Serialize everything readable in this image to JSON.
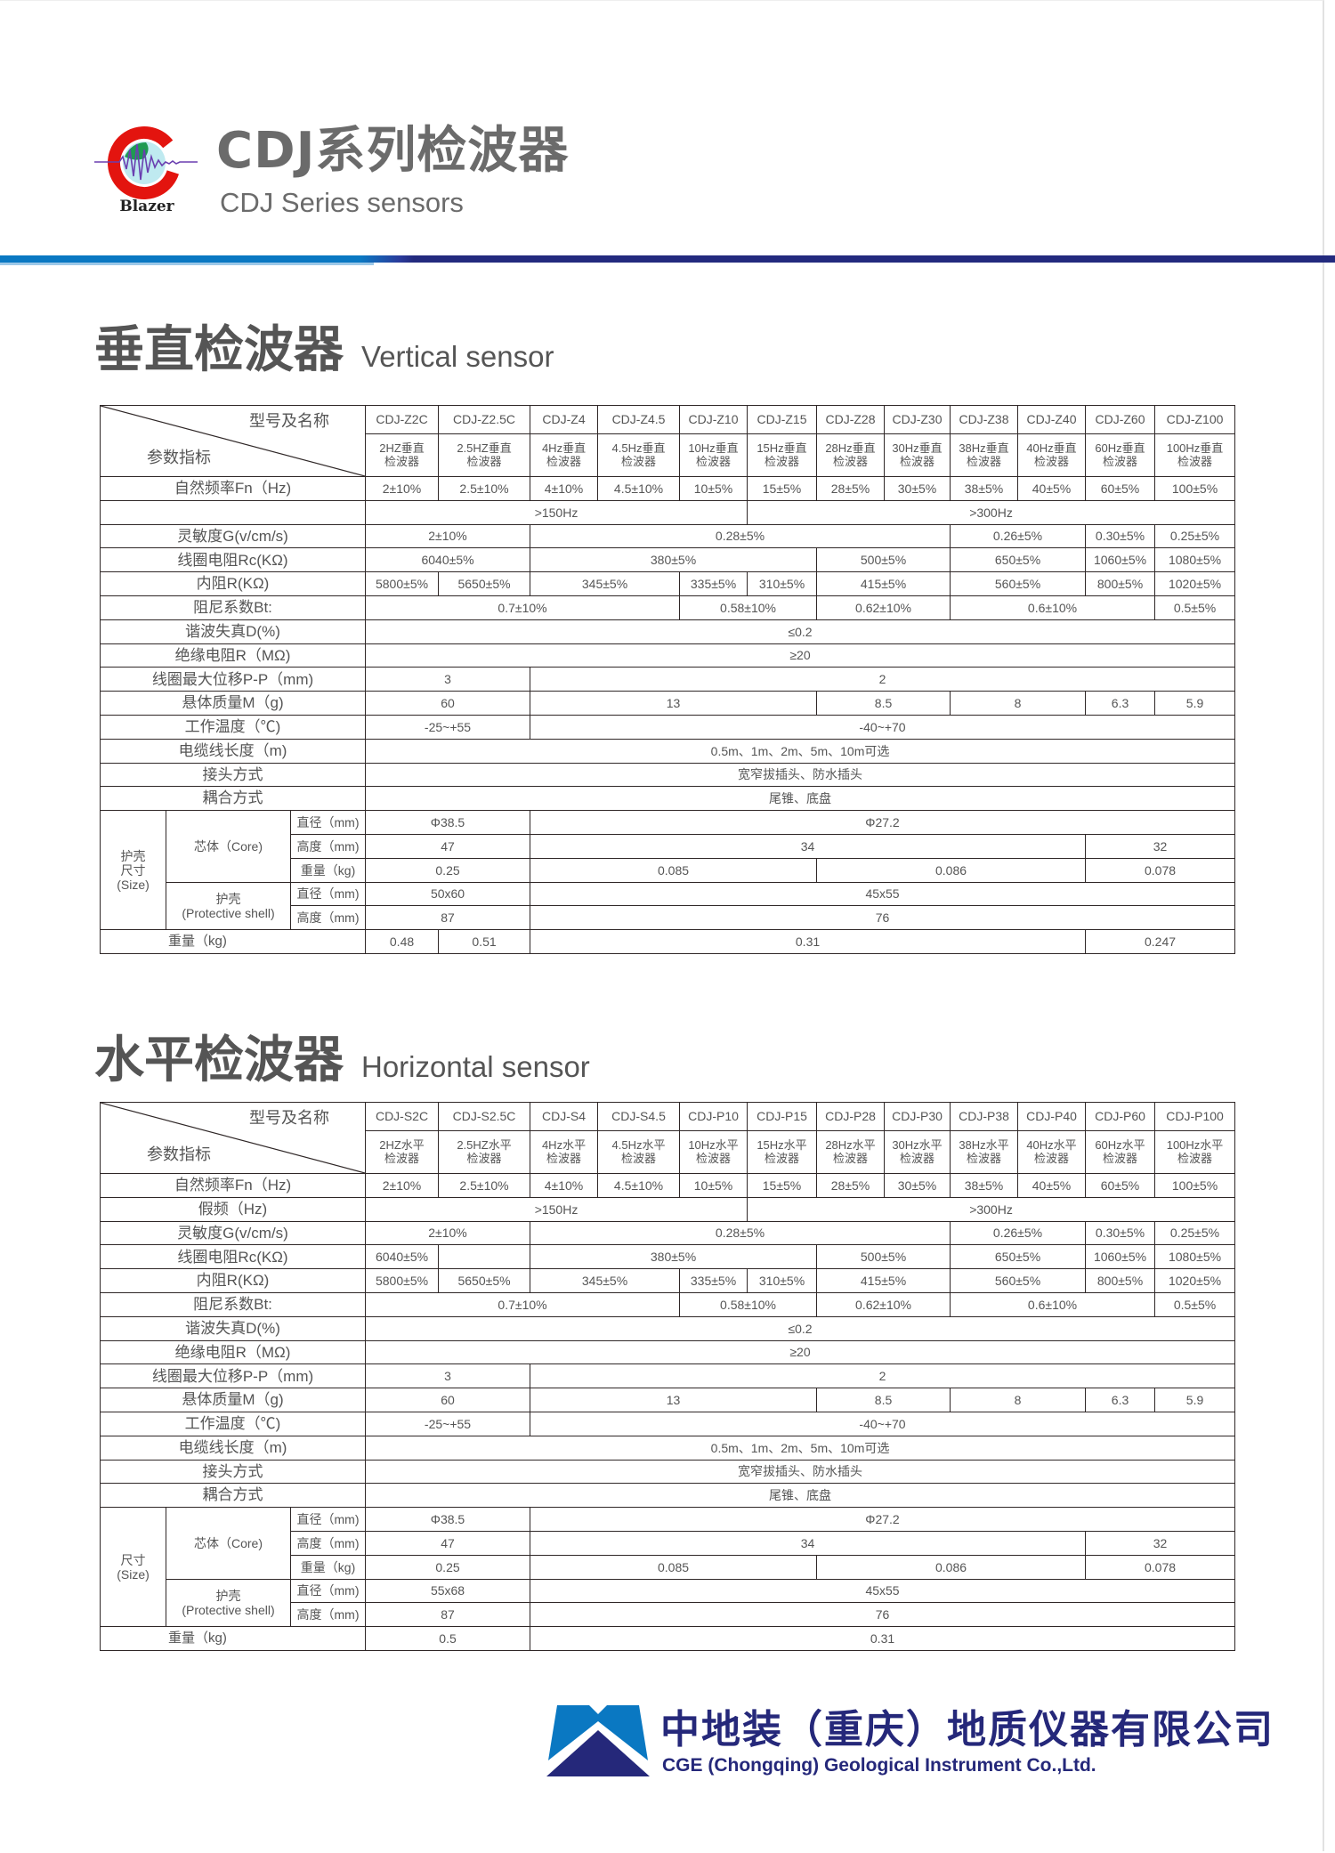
{
  "header": {
    "logo_text": "Blazer",
    "title_cn": "CDJ系列检波器",
    "title_en": "CDJ Series sensors",
    "colors": {
      "band_blue": "#0a78c2",
      "band_navy": "#232a7e",
      "logo_red": "#e3140f"
    }
  },
  "vertical": {
    "title_cn": "垂直检波器",
    "title_en": "Vertical sensor",
    "corner_top": "型号及名称",
    "corner_bottom": "参数指标",
    "models": [
      "CDJ-Z2C",
      "CDJ-Z2.5C",
      "CDJ-Z4",
      "CDJ-Z4.5",
      "CDJ-Z10",
      "CDJ-Z15",
      "CDJ-Z28",
      "CDJ-Z30",
      "CDJ-Z38",
      "CDJ-Z40",
      "CDJ-Z60",
      "CDJ-Z100"
    ],
    "names": [
      "2HZ垂直\n检波器",
      "2.5HZ垂直\n检波器",
      "4Hz垂直\n检波器",
      "4.5Hz垂直\n检波器",
      "10Hz垂直\n检波器",
      "15Hz垂直\n检波器",
      "28Hz垂直\n检波器",
      "30Hz垂直\n检波器",
      "38Hz垂直\n检波器",
      "40Hz垂直\n检波器",
      "60Hz垂直\n检波器",
      "100Hz垂直\n检波器"
    ],
    "rows": [
      {
        "label": "自然频率Fn（Hz)",
        "cells": [
          {
            "v": "2±10%",
            "s": 1
          },
          {
            "v": "2.5±10%",
            "s": 1
          },
          {
            "v": "4±10%",
            "s": 1
          },
          {
            "v": "4.5±10%",
            "s": 1
          },
          {
            "v": "10±5%",
            "s": 1
          },
          {
            "v": "15±5%",
            "s": 1
          },
          {
            "v": "28±5%",
            "s": 1
          },
          {
            "v": "30±5%",
            "s": 1
          },
          {
            "v": "38±5%",
            "s": 1
          },
          {
            "v": "40±5%",
            "s": 1
          },
          {
            "v": "60±5%",
            "s": 1
          },
          {
            "v": "100±5%",
            "s": 1
          }
        ]
      },
      {
        "label": "",
        "cells": [
          {
            "v": ">150Hz",
            "s": 5
          },
          {
            "v": ">300Hz",
            "s": 7
          }
        ]
      },
      {
        "label": "灵敏度G(v/cm/s)",
        "cells": [
          {
            "v": "2±10%",
            "s": 2
          },
          {
            "v": "0.28±5%",
            "s": 6
          },
          {
            "v": "0.26±5%",
            "s": 2
          },
          {
            "v": "0.30±5%",
            "s": 1
          },
          {
            "v": "0.25±5%",
            "s": 1
          }
        ]
      },
      {
        "label": "线圈电阻Rc(KΩ)",
        "cells": [
          {
            "v": "6040±5%",
            "s": 2
          },
          {
            "v": "380±5%",
            "s": 4
          },
          {
            "v": "500±5%",
            "s": 2
          },
          {
            "v": "650±5%",
            "s": 2
          },
          {
            "v": "1060±5%",
            "s": 1
          },
          {
            "v": "1080±5%",
            "s": 1
          }
        ]
      },
      {
        "label": "内阻R(KΩ)",
        "cells": [
          {
            "v": "5800±5%",
            "s": 1
          },
          {
            "v": "5650±5%",
            "s": 1
          },
          {
            "v": "345±5%",
            "s": 2
          },
          {
            "v": "335±5%",
            "s": 1
          },
          {
            "v": "310±5%",
            "s": 1
          },
          {
            "v": "415±5%",
            "s": 2
          },
          {
            "v": "560±5%",
            "s": 2
          },
          {
            "v": "800±5%",
            "s": 1
          },
          {
            "v": "1020±5%",
            "s": 1
          }
        ]
      },
      {
        "label": "阻尼系数Bt:",
        "cells": [
          {
            "v": "0.7±10%",
            "s": 4
          },
          {
            "v": "0.58±10%",
            "s": 2
          },
          {
            "v": "0.62±10%",
            "s": 2
          },
          {
            "v": "0.6±10%",
            "s": 3
          },
          {
            "v": "0.5±5%",
            "s": 1
          }
        ]
      },
      {
        "label": "谐波失真D(%)",
        "cells": [
          {
            "v": "≤0.2",
            "s": 12
          }
        ]
      },
      {
        "label": "绝缘电阻R（MΩ)",
        "cells": [
          {
            "v": "≥20",
            "s": 12
          }
        ]
      },
      {
        "label": "线圈最大位移P-P（mm)",
        "cells": [
          {
            "v": "3",
            "s": 2
          },
          {
            "v": "2",
            "s": 10
          }
        ]
      },
      {
        "label": "悬体质量M（g)",
        "cells": [
          {
            "v": "60",
            "s": 2
          },
          {
            "v": "13",
            "s": 4
          },
          {
            "v": "8.5",
            "s": 2
          },
          {
            "v": "8",
            "s": 2
          },
          {
            "v": "6.3",
            "s": 1
          },
          {
            "v": "5.9",
            "s": 1
          }
        ]
      },
      {
        "label": "工作温度（℃)",
        "cells": [
          {
            "v": "-25~+55",
            "s": 2
          },
          {
            "v": "-40~+70",
            "s": 10
          }
        ]
      },
      {
        "label": "电缆线长度（m)",
        "cells": [
          {
            "v": "0.5m、1m、2m、5m、10m可选",
            "s": 12
          }
        ]
      },
      {
        "label": "接头方式",
        "cells": [
          {
            "v": "宽窄拔插头、防水插头",
            "s": 12
          }
        ]
      },
      {
        "label": "耦合方式",
        "cells": [
          {
            "v": "尾锥、底盘",
            "s": 12
          }
        ]
      }
    ],
    "size": {
      "group_label": "护壳\n尺寸\n(Size)",
      "core_label": "芯体（Core)",
      "shell_label": "护壳\n(Protective shell)",
      "core_rows": [
        {
          "sub": "直径（mm)",
          "cells": [
            {
              "v": "Φ38.5",
              "s": 2
            },
            {
              "v": "Φ27.2",
              "s": 10
            }
          ]
        },
        {
          "sub": "高度（mm)",
          "cells": [
            {
              "v": "47",
              "s": 2
            },
            {
              "v": "34",
              "s": 8
            },
            {
              "v": "32",
              "s": 2
            }
          ]
        },
        {
          "sub": "重量（kg)",
          "cells": [
            {
              "v": "0.25",
              "s": 2
            },
            {
              "v": "0.085",
              "s": 4
            },
            {
              "v": "0.086",
              "s": 4
            },
            {
              "v": "0.078",
              "s": 2
            }
          ]
        }
      ],
      "shell_rows": [
        {
          "sub": "直径（mm)",
          "cells": [
            {
              "v": "50x60",
              "s": 2
            },
            {
              "v": "45x55",
              "s": 10
            }
          ]
        },
        {
          "sub": "高度（mm)",
          "cells": [
            {
              "v": "87",
              "s": 2
            },
            {
              "v": "76",
              "s": 10
            }
          ]
        }
      ]
    },
    "weight": {
      "label": "重量（kg)",
      "cells": [
        {
          "v": "0.48",
          "s": 1
        },
        {
          "v": "0.51",
          "s": 1
        },
        {
          "v": "0.31",
          "s": 8
        },
        {
          "v": "0.247",
          "s": 2
        }
      ]
    }
  },
  "horizontal": {
    "title_cn": "水平检波器",
    "title_en": "Horizontal sensor",
    "corner_top": "型号及名称",
    "corner_bottom": "参数指标",
    "models": [
      "CDJ-S2C",
      "CDJ-S2.5C",
      "CDJ-S4",
      "CDJ-S4.5",
      "CDJ-P10",
      "CDJ-P15",
      "CDJ-P28",
      "CDJ-P30",
      "CDJ-P38",
      "CDJ-P40",
      "CDJ-P60",
      "CDJ-P100"
    ],
    "names": [
      "2HZ水平\n检波器",
      "2.5HZ水平\n检波器",
      "4Hz水平\n检波器",
      "4.5Hz水平\n检波器",
      "10Hz水平\n检波器",
      "15Hz水平\n检波器",
      "28Hz水平\n检波器",
      "30Hz水平\n检波器",
      "38Hz水平\n检波器",
      "40Hz水平\n检波器",
      "60Hz水平\n检波器",
      "100Hz水平\n检波器"
    ],
    "rows": [
      {
        "label": "自然频率Fn（Hz)",
        "cells": [
          {
            "v": "2±10%",
            "s": 1
          },
          {
            "v": "2.5±10%",
            "s": 1
          },
          {
            "v": "4±10%",
            "s": 1
          },
          {
            "v": "4.5±10%",
            "s": 1
          },
          {
            "v": "10±5%",
            "s": 1
          },
          {
            "v": "15±5%",
            "s": 1
          },
          {
            "v": "28±5%",
            "s": 1
          },
          {
            "v": "30±5%",
            "s": 1
          },
          {
            "v": "38±5%",
            "s": 1
          },
          {
            "v": "40±5%",
            "s": 1
          },
          {
            "v": "60±5%",
            "s": 1
          },
          {
            "v": "100±5%",
            "s": 1
          }
        ]
      },
      {
        "label": "假频（Hz)",
        "cells": [
          {
            "v": ">150Hz",
            "s": 5
          },
          {
            "v": ">300Hz",
            "s": 7
          }
        ]
      },
      {
        "label": "灵敏度G(v/cm/s)",
        "cells": [
          {
            "v": "2±10%",
            "s": 2
          },
          {
            "v": "0.28±5%",
            "s": 6
          },
          {
            "v": "0.26±5%",
            "s": 2
          },
          {
            "v": "0.30±5%",
            "s": 1
          },
          {
            "v": "0.25±5%",
            "s": 1
          }
        ]
      },
      {
        "label": "线圈电阻Rc(KΩ)",
        "cells": [
          {
            "v": "6040±5%",
            "s": 1
          },
          {
            "v": "",
            "s": 1
          },
          {
            "v": "380±5%",
            "s": 4
          },
          {
            "v": "500±5%",
            "s": 2
          },
          {
            "v": "650±5%",
            "s": 2
          },
          {
            "v": "1060±5%",
            "s": 1
          },
          {
            "v": "1080±5%",
            "s": 1
          }
        ]
      },
      {
        "label": "内阻R(KΩ)",
        "cells": [
          {
            "v": "5800±5%",
            "s": 1
          },
          {
            "v": "5650±5%",
            "s": 1
          },
          {
            "v": "345±5%",
            "s": 2
          },
          {
            "v": "335±5%",
            "s": 1
          },
          {
            "v": "310±5%",
            "s": 1
          },
          {
            "v": "415±5%",
            "s": 2
          },
          {
            "v": "560±5%",
            "s": 2
          },
          {
            "v": "800±5%",
            "s": 1
          },
          {
            "v": "1020±5%",
            "s": 1
          }
        ]
      },
      {
        "label": "阻尼系数Bt:",
        "cells": [
          {
            "v": "0.7±10%",
            "s": 4
          },
          {
            "v": "0.58±10%",
            "s": 2
          },
          {
            "v": "0.62±10%",
            "s": 2
          },
          {
            "v": "0.6±10%",
            "s": 3
          },
          {
            "v": "0.5±5%",
            "s": 1
          }
        ]
      },
      {
        "label": "谐波失真D(%)",
        "cells": [
          {
            "v": "≤0.2",
            "s": 12
          }
        ]
      },
      {
        "label": "绝缘电阻R（MΩ)",
        "cells": [
          {
            "v": "≥20",
            "s": 12
          }
        ]
      },
      {
        "label": "线圈最大位移P-P（mm)",
        "cells": [
          {
            "v": "3",
            "s": 2
          },
          {
            "v": "2",
            "s": 10
          }
        ]
      },
      {
        "label": "悬体质量M（g)",
        "cells": [
          {
            "v": "60",
            "s": 2
          },
          {
            "v": "13",
            "s": 4
          },
          {
            "v": "8.5",
            "s": 2
          },
          {
            "v": "8",
            "s": 2
          },
          {
            "v": "6.3",
            "s": 1
          },
          {
            "v": "5.9",
            "s": 1
          }
        ]
      },
      {
        "label": "工作温度（℃)",
        "cells": [
          {
            "v": "-25~+55",
            "s": 2
          },
          {
            "v": "-40~+70",
            "s": 10
          }
        ]
      },
      {
        "label": "电缆线长度（m)",
        "cells": [
          {
            "v": "0.5m、1m、2m、5m、10m可选",
            "s": 12
          }
        ]
      },
      {
        "label": "接头方式",
        "cells": [
          {
            "v": "宽窄拔插头、防水插头",
            "s": 12
          }
        ]
      },
      {
        "label": "耦合方式",
        "cells": [
          {
            "v": "尾锥、底盘",
            "s": 12
          }
        ]
      }
    ],
    "size": {
      "group_label": "尺寸\n(Size)",
      "core_label": "芯体（Core)",
      "shell_label": "护壳\n(Protective shell)",
      "core_rows": [
        {
          "sub": "直径（mm)",
          "cells": [
            {
              "v": "Φ38.5",
              "s": 2
            },
            {
              "v": "Φ27.2",
              "s": 10
            }
          ]
        },
        {
          "sub": "高度（mm)",
          "cells": [
            {
              "v": "47",
              "s": 2
            },
            {
              "v": "34",
              "s": 8
            },
            {
              "v": "32",
              "s": 2
            }
          ]
        },
        {
          "sub": "重量（kg)",
          "cells": [
            {
              "v": "0.25",
              "s": 2
            },
            {
              "v": "0.085",
              "s": 4
            },
            {
              "v": "0.086",
              "s": 4
            },
            {
              "v": "0.078",
              "s": 2
            }
          ]
        }
      ],
      "shell_rows": [
        {
          "sub": "直径（mm)",
          "cells": [
            {
              "v": "55x68",
              "s": 2
            },
            {
              "v": "45x55",
              "s": 10
            }
          ]
        },
        {
          "sub": "高度（mm)",
          "cells": [
            {
              "v": "87",
              "s": 2
            },
            {
              "v": "76",
              "s": 10
            }
          ]
        }
      ]
    },
    "weight": {
      "label": "重量（kg)",
      "cells": [
        {
          "v": "0.5",
          "s": 2
        },
        {
          "v": "0.31",
          "s": 10
        }
      ]
    }
  },
  "footer": {
    "company_cn": "中地装（重庆）地质仪器有限公司",
    "company_en": "CGE (Chongqing) Geological Instrument Co.,Ltd.",
    "colors": {
      "logo_blue": "#0a78c2",
      "logo_navy": "#25287a"
    }
  }
}
